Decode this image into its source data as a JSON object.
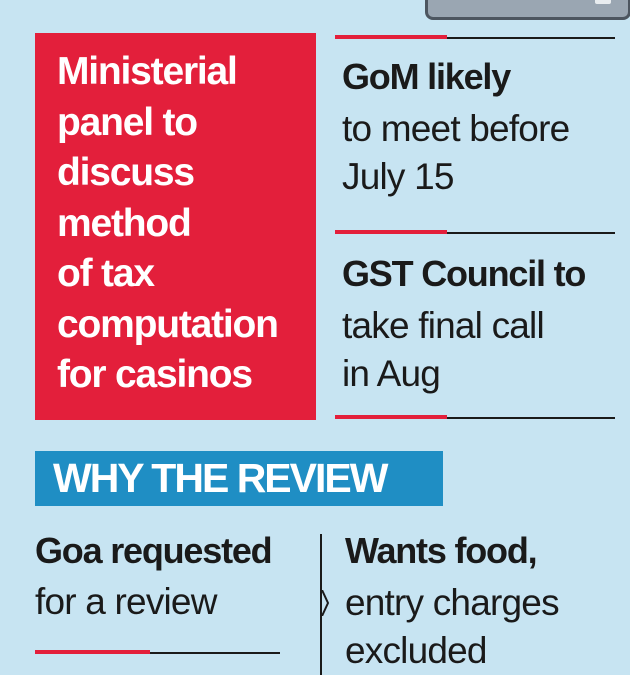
{
  "panel": {
    "lines": [
      "Ministerial",
      "panel to",
      "discuss",
      "method",
      "of tax",
      "computation",
      "for casinos"
    ]
  },
  "items": [
    {
      "headline": "GoM likely",
      "text": [
        "to meet before",
        "July 15"
      ]
    },
    {
      "headline": "GST Council to",
      "text": [
        "take final call",
        "in Aug"
      ]
    }
  ],
  "banner": {
    "label": "WHY THE REVIEW"
  },
  "reasons": [
    {
      "headline": "Goa requested",
      "text": [
        "for a review"
      ]
    },
    {
      "headline": "Wants food,",
      "text": [
        "entry charges",
        "excluded"
      ]
    }
  ],
  "colors": {
    "background": "#c7e4f2",
    "red": "#e31f3b",
    "blue": "#1f8ec4",
    "text": "#1a1a1a"
  }
}
